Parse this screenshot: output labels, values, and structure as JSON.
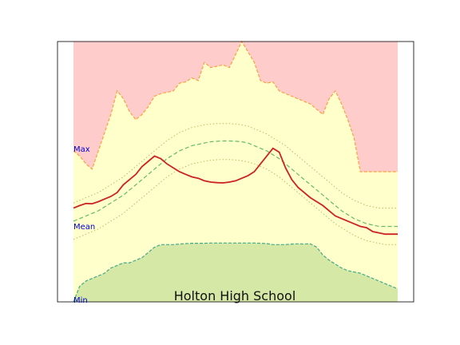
{
  "chart_data": {
    "type": "area",
    "title": "Holton High School",
    "xlim": [
      0,
      52
    ],
    "ylim": [
      0,
      100
    ],
    "grid": false,
    "band_labels": {
      "max": "Max",
      "mean": "Mean",
      "min": "Min"
    },
    "x": [
      0,
      1,
      2,
      3,
      4,
      5,
      6,
      7,
      8,
      9,
      10,
      11,
      12,
      13,
      14,
      15,
      16,
      17,
      18,
      19,
      20,
      21,
      22,
      23,
      24,
      25,
      26,
      27,
      28,
      29,
      30,
      31,
      32,
      33,
      34,
      35,
      36,
      37,
      38,
      39,
      40,
      41,
      42,
      43,
      44,
      45,
      46,
      47,
      48,
      49,
      50,
      51,
      52
    ],
    "series": [
      {
        "role": "max",
        "values": [
          58,
          56,
          53,
          51,
          58,
          65,
          72,
          81,
          78,
          73,
          70,
          72,
          75,
          79,
          80,
          80.5,
          81,
          84,
          84.5,
          86,
          85,
          92,
          90,
          90.5,
          91,
          90,
          95,
          100,
          96,
          92,
          85,
          84,
          84.5,
          81,
          80,
          79,
          78,
          77,
          76,
          74,
          72,
          78,
          81,
          76,
          70,
          63,
          50,
          50,
          50,
          50,
          50,
          50,
          50
        ],
        "color": "#ffcccc",
        "line": "#ffa040"
      },
      {
        "role": "actual",
        "values": [
          36,
          37,
          37.8,
          37.7,
          38.5,
          39.5,
          40.5,
          42,
          45,
          47,
          49,
          52,
          54,
          56,
          55,
          53,
          51.5,
          50,
          49,
          48,
          47.5,
          46.5,
          46,
          45.8,
          45.7,
          46,
          46.5,
          47.5,
          48.5,
          50,
          53,
          56,
          59,
          57.5,
          51.5,
          47,
          44,
          42,
          40,
          38.5,
          37,
          35,
          33,
          32,
          31,
          30,
          29,
          28.5,
          27,
          26.5,
          26,
          26,
          26
        ],
        "color": "#cc2222"
      },
      {
        "role": "mean",
        "values": [
          31,
          32,
          33,
          34,
          35,
          36.5,
          38,
          39.5,
          41,
          43,
          45,
          47,
          49,
          51,
          53,
          55,
          56.5,
          58,
          59,
          60,
          60.5,
          61,
          61.5,
          61.7,
          61.8,
          61.8,
          61.7,
          61.5,
          61,
          60,
          59,
          58,
          56.5,
          55,
          53,
          51,
          49,
          47,
          45,
          43,
          41,
          39,
          37,
          35,
          33.5,
          32,
          31,
          30,
          29.5,
          29,
          29,
          29,
          29
        ],
        "color": "#66bb66"
      },
      {
        "role": "mean_plus_sd",
        "values": [
          38,
          39,
          40,
          41,
          42,
          43.5,
          45,
          46.5,
          48,
          50,
          52,
          54,
          56,
          58,
          60,
          62,
          63.5,
          65,
          66,
          67,
          67.5,
          68,
          68.3,
          68.5,
          68.5,
          68.5,
          68.3,
          68,
          67.5,
          66.5,
          65.5,
          64.5,
          63,
          61.5,
          60,
          58,
          56,
          54,
          52,
          50,
          48,
          46,
          44,
          42,
          40.5,
          39,
          38,
          37,
          36.5,
          36,
          36,
          36,
          36
        ],
        "color": "#bbbb66"
      },
      {
        "role": "mean_minus_sd",
        "values": [
          24,
          25,
          26,
          27,
          28,
          29.5,
          31,
          32.5,
          34,
          36,
          38,
          40,
          42,
          44,
          46,
          48,
          49.5,
          51,
          52,
          53,
          53.5,
          54,
          54.4,
          54.6,
          54.7,
          54.7,
          54.5,
          54.2,
          53.7,
          53,
          52,
          51,
          49.5,
          48,
          46,
          44,
          42,
          40,
          38,
          36,
          34,
          32,
          30,
          28.5,
          27,
          25.5,
          24.5,
          23.5,
          23,
          22.5,
          22,
          22,
          22
        ],
        "color": "#bbbb66"
      },
      {
        "role": "min",
        "values": [
          0,
          6,
          8,
          9,
          10,
          11,
          13,
          14,
          15,
          15,
          16,
          17,
          19,
          21,
          22,
          22,
          22,
          22.2,
          22.4,
          22.5,
          22.5,
          22.5,
          22.6,
          22.6,
          22.6,
          22.6,
          22.6,
          22.6,
          22.6,
          22.6,
          22.5,
          22.4,
          22,
          22,
          22,
          22.2,
          22.3,
          22.2,
          22.3,
          21,
          18,
          16,
          14.5,
          13,
          12,
          11.5,
          11,
          10,
          9,
          8,
          7,
          6,
          5
        ],
        "color": "#d6e8a6",
        "line": "#44aa88"
      }
    ]
  }
}
